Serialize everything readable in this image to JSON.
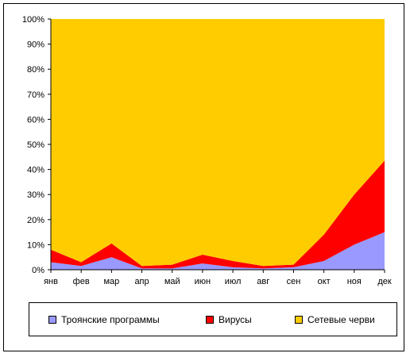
{
  "chart_data": {
    "type": "area",
    "stacked": true,
    "percent_axis": true,
    "categories": [
      "янв",
      "фев",
      "мар",
      "апр",
      "май",
      "июн",
      "июл",
      "авг",
      "сен",
      "окт",
      "ноя",
      "дек"
    ],
    "y_ticks": [
      "0%",
      "10%",
      "20%",
      "30%",
      "40%",
      "50%",
      "60%",
      "70%",
      "80%",
      "90%",
      "100%"
    ],
    "ylim": [
      0,
      100
    ],
    "grid": false,
    "legend_position": "bottom",
    "series": [
      {
        "name": "Троянские программы",
        "color": "#9999ff",
        "values": [
          3,
          1.5,
          5,
          0.5,
          0.5,
          2.5,
          1,
          0.5,
          1,
          3.5,
          10,
          15
        ]
      },
      {
        "name": "Вирусы",
        "color": "#ff0000",
        "values": [
          5,
          1.5,
          5.5,
          1,
          1.5,
          3.5,
          2.5,
          1,
          1,
          10.5,
          20,
          28.5
        ]
      },
      {
        "name": "Сетевые черви",
        "color": "#ffcc00",
        "values": [
          92,
          97,
          89.5,
          98.5,
          98,
          94,
          96.5,
          98.5,
          98,
          86,
          70,
          56.5
        ]
      }
    ]
  }
}
